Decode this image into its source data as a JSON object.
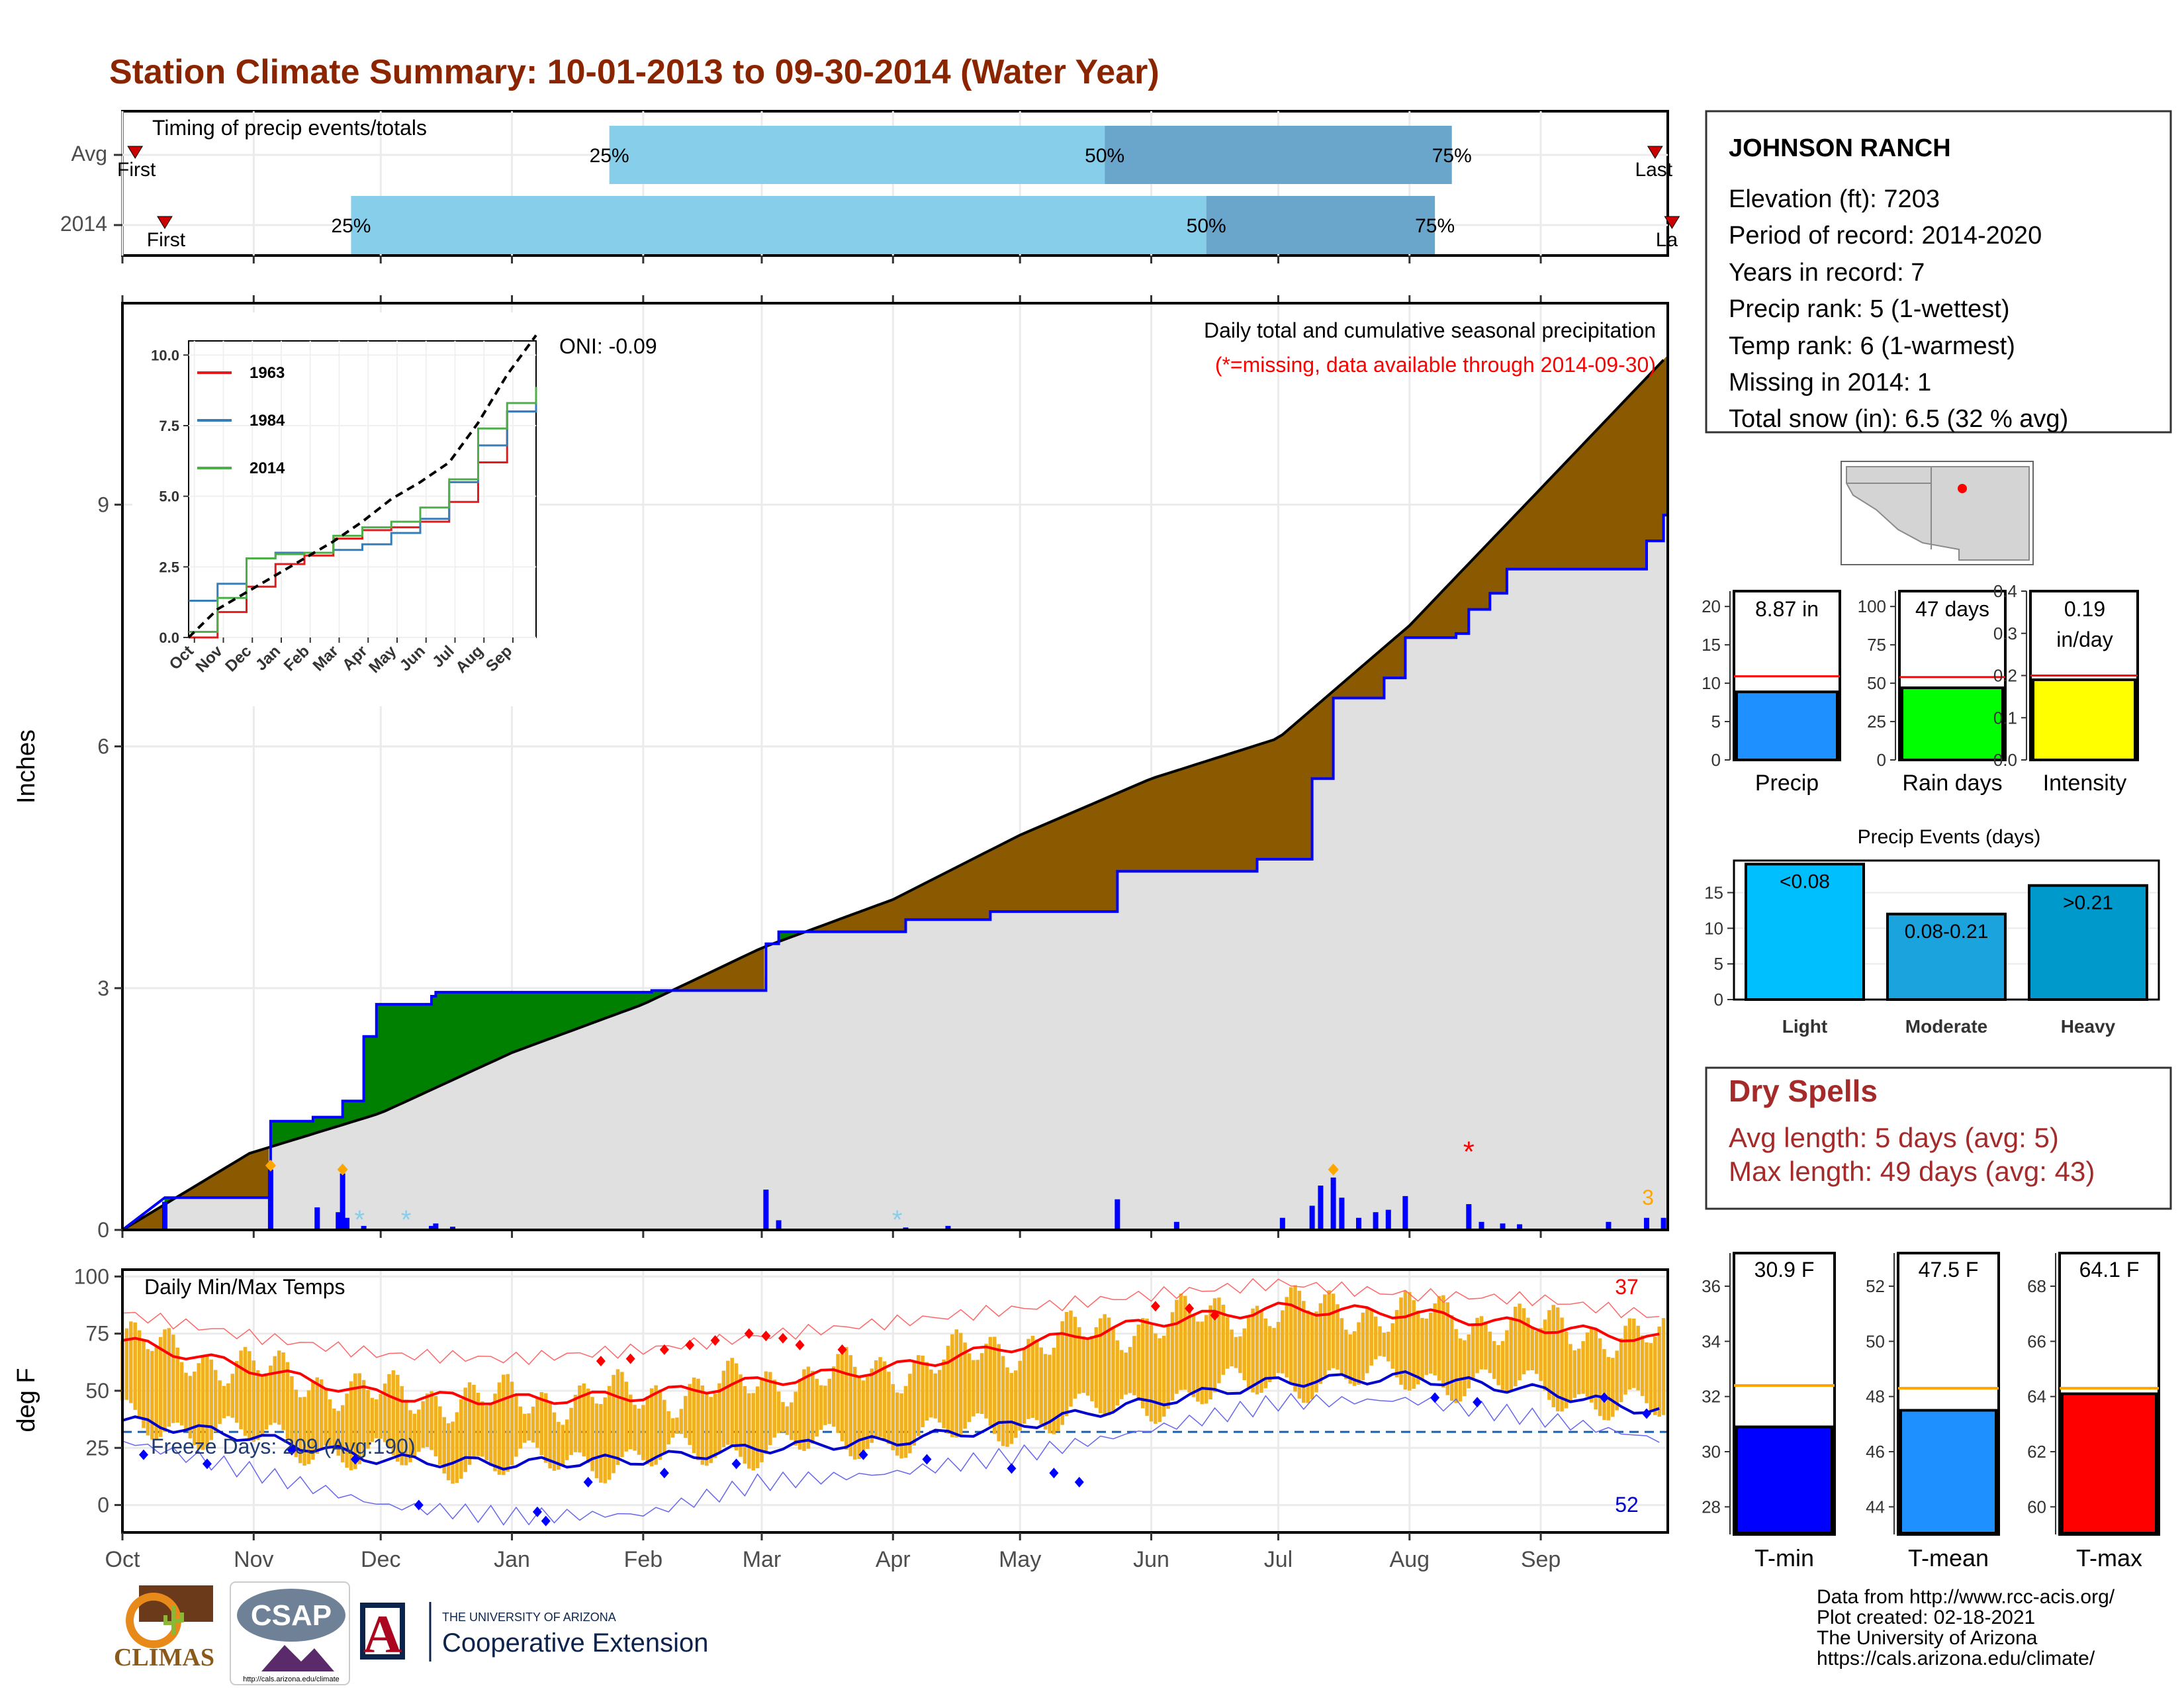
{
  "title": "Station Climate Summary: 10-01-2013 to 09-30-2014 (Water Year)",
  "timing": {
    "panel_label": "Timing of precip events/totals",
    "rows": [
      {
        "label": "Avg",
        "first_label": "First",
        "last_label": "Last",
        "p25_label": "25%",
        "p50_label": "50%",
        "p75_label": "75%",
        "first_day": 3,
        "p25_day": 115,
        "p50_day": 232,
        "p75_day": 314,
        "last_day": 362
      },
      {
        "label": "2014",
        "first_label": "First",
        "last_label": "La",
        "p25_label": "25%",
        "p50_label": "50%",
        "p75_label": "75%",
        "first_day": 10,
        "p25_day": 54,
        "p50_day": 256,
        "p75_day": 310,
        "last_day": 366
      }
    ],
    "colors": {
      "light": "#87ceeb",
      "mid": "#6aa6cc",
      "marker": "#cc0000"
    }
  },
  "station": {
    "name": "JOHNSON RANCH",
    "lines": [
      "Elevation (ft): 7203",
      "Period of record: 2014-2020",
      "Years in record: 7",
      "Precip rank: 5 (1-wettest)",
      "Temp rank: 6 (1-warmest)",
      "Missing in 2014: 1",
      "Total snow (in): 6.5 (32 % avg)"
    ]
  },
  "chart_data": [
    {
      "id": "cumulative-precip",
      "type": "area",
      "title": "Daily total and cumulative seasonal precipitation",
      "subtitle": "(*=missing, data available through 2014-09-30)",
      "oni_label": "ONI: -0.09",
      "ylabel": "Inches",
      "ylim": [
        0,
        11.5
      ],
      "yticks": [
        0,
        3,
        6,
        9
      ],
      "xlim": [
        0,
        365
      ],
      "x_ticks": [
        {
          "label": "Oct",
          "day": 0
        },
        {
          "label": "Nov",
          "day": 31
        },
        {
          "label": "Dec",
          "day": 61
        },
        {
          "label": "Jan",
          "day": 92
        },
        {
          "label": "Feb",
          "day": 123
        },
        {
          "label": "Mar",
          "day": 151
        },
        {
          "label": "Apr",
          "day": 182
        },
        {
          "label": "May",
          "day": 212
        },
        {
          "label": "Jun",
          "day": 243
        },
        {
          "label": "Jul",
          "day": 273
        },
        {
          "label": "Aug",
          "day": 304
        },
        {
          "label": "Sep",
          "day": 335
        }
      ],
      "average_cumulative": [
        [
          0,
          0
        ],
        [
          30,
          0.95
        ],
        [
          61,
          1.45
        ],
        [
          92,
          2.2
        ],
        [
          123,
          2.8
        ],
        [
          151,
          3.5
        ],
        [
          182,
          4.1
        ],
        [
          212,
          4.9
        ],
        [
          243,
          5.6
        ],
        [
          273,
          6.1
        ],
        [
          304,
          7.5
        ],
        [
          335,
          9.2
        ],
        [
          365,
          10.85
        ]
      ],
      "observed_cumulative_steps": [
        [
          0,
          0
        ],
        [
          10,
          0.4
        ],
        [
          25,
          0.4
        ],
        [
          35,
          0.4
        ],
        [
          35,
          1.35
        ],
        [
          45,
          1.35
        ],
        [
          45,
          1.4
        ],
        [
          52,
          1.4
        ],
        [
          52,
          1.6
        ],
        [
          57,
          1.6
        ],
        [
          57,
          2.4
        ],
        [
          60,
          2.4
        ],
        [
          60,
          2.8
        ],
        [
          73,
          2.8
        ],
        [
          73,
          2.9
        ],
        [
          74,
          2.9
        ],
        [
          74,
          2.95
        ],
        [
          125,
          2.95
        ],
        [
          125,
          2.97
        ],
        [
          152,
          2.97
        ],
        [
          152,
          3.55
        ],
        [
          155,
          3.55
        ],
        [
          155,
          3.7
        ],
        [
          185,
          3.7
        ],
        [
          185,
          3.85
        ],
        [
          205,
          3.85
        ],
        [
          205,
          3.95
        ],
        [
          235,
          3.95
        ],
        [
          235,
          4.45
        ],
        [
          268,
          4.45
        ],
        [
          268,
          4.6
        ],
        [
          281,
          4.6
        ],
        [
          281,
          5.6
        ],
        [
          286,
          5.6
        ],
        [
          286,
          6.6
        ],
        [
          298,
          6.6
        ],
        [
          298,
          6.85
        ],
        [
          303,
          6.85
        ],
        [
          303,
          7.35
        ],
        [
          315,
          7.35
        ],
        [
          315,
          7.4
        ],
        [
          318,
          7.4
        ],
        [
          318,
          7.7
        ],
        [
          323,
          7.7
        ],
        [
          323,
          7.9
        ],
        [
          327,
          7.9
        ],
        [
          327,
          8.2
        ],
        [
          360,
          8.2
        ],
        [
          360,
          8.55
        ],
        [
          364,
          8.55
        ],
        [
          364,
          8.87
        ]
      ],
      "daily_precip": [
        [
          10,
          0.35
        ],
        [
          35,
          0.75
        ],
        [
          46,
          0.28
        ],
        [
          51,
          0.22
        ],
        [
          52,
          0.7
        ],
        [
          53,
          0.15
        ],
        [
          57,
          0.05
        ],
        [
          73,
          0.05
        ],
        [
          74,
          0.08
        ],
        [
          78,
          0.04
        ],
        [
          152,
          0.5
        ],
        [
          155,
          0.12
        ],
        [
          185,
          0.03
        ],
        [
          195,
          0.05
        ],
        [
          235,
          0.38
        ],
        [
          249,
          0.1
        ],
        [
          274,
          0.15
        ],
        [
          281,
          0.3
        ],
        [
          283,
          0.55
        ],
        [
          286,
          0.65
        ],
        [
          288,
          0.4
        ],
        [
          292,
          0.15
        ],
        [
          296,
          0.22
        ],
        [
          299,
          0.25
        ],
        [
          303,
          0.42
        ],
        [
          318,
          0.32
        ],
        [
          321,
          0.1
        ],
        [
          326,
          0.08
        ],
        [
          330,
          0.07
        ],
        [
          351,
          0.1
        ],
        [
          360,
          0.15
        ],
        [
          364,
          0.15
        ]
      ],
      "missing_markers": [
        {
          "day": 318,
          "value": 1.0,
          "label": "*"
        }
      ],
      "snow_markers": [
        56,
        67,
        183
      ],
      "orange_markers": [
        {
          "day": 35,
          "value": 0.75
        },
        {
          "day": 52,
          "value": 0.7
        },
        {
          "day": 286,
          "value": 0.7
        }
      ],
      "corner_count": "3",
      "colors": {
        "above": "#8b5a00",
        "below": "#008000",
        "fill": "#e0e0e0",
        "observed": "#0000ff",
        "avg": "#000000"
      }
    },
    {
      "id": "historic-inset",
      "type": "line",
      "ylim": [
        0,
        10.5
      ],
      "yticks": [
        "0.0",
        "2.5",
        "5.0",
        "7.5",
        "10.0"
      ],
      "x_ticks": [
        "Oct",
        "Nov",
        "Dec",
        "Jan",
        "Feb",
        "Mar",
        "Apr",
        "May",
        "Jun",
        "Jul",
        "Aug",
        "Sep"
      ],
      "series": [
        {
          "name": "1963",
          "color": "#e41a1c",
          "values": [
            [
              0,
              0
            ],
            [
              1,
              0.9
            ],
            [
              2,
              1.8
            ],
            [
              3,
              2.6
            ],
            [
              4,
              2.9
            ],
            [
              5,
              3.5
            ],
            [
              6,
              3.8
            ],
            [
              7,
              3.9
            ],
            [
              8,
              4.1
            ],
            [
              9,
              4.8
            ],
            [
              10,
              6.2
            ],
            [
              11,
              8.0
            ],
            [
              12,
              8.5
            ]
          ]
        },
        {
          "name": "1984",
          "color": "#377eb8",
          "values": [
            [
              0,
              1.3
            ],
            [
              0.5,
              1.3
            ],
            [
              1,
              1.9
            ],
            [
              2,
              2.8
            ],
            [
              3,
              3.0
            ],
            [
              4,
              3.0
            ],
            [
              5,
              3.1
            ],
            [
              6,
              3.3
            ],
            [
              7,
              3.7
            ],
            [
              8,
              4.2
            ],
            [
              9,
              5.5
            ],
            [
              10,
              6.8
            ],
            [
              11,
              8.0
            ],
            [
              12,
              8.6
            ]
          ]
        },
        {
          "name": "2014",
          "color": "#4daf4a",
          "values": [
            [
              0,
              0.2
            ],
            [
              1,
              1.4
            ],
            [
              2,
              2.8
            ],
            [
              3,
              2.95
            ],
            [
              4,
              3.0
            ],
            [
              5,
              3.6
            ],
            [
              6,
              3.9
            ],
            [
              7,
              4.1
            ],
            [
              8,
              4.6
            ],
            [
              9,
              5.6
            ],
            [
              10,
              7.4
            ],
            [
              11,
              8.3
            ],
            [
              12,
              8.87
            ]
          ]
        }
      ],
      "avg_series": [
        [
          0,
          0
        ],
        [
          1,
          1.0
        ],
        [
          2,
          1.6
        ],
        [
          3,
          2.2
        ],
        [
          4,
          2.8
        ],
        [
          5,
          3.4
        ],
        [
          6,
          4.1
        ],
        [
          7,
          4.9
        ],
        [
          8,
          5.5
        ],
        [
          9,
          6.2
        ],
        [
          10,
          7.6
        ],
        [
          11,
          9.3
        ],
        [
          12,
          10.7
        ]
      ]
    },
    {
      "id": "precip-total",
      "type": "bar",
      "categories": [
        "Precip"
      ],
      "values": [
        8.87
      ],
      "value_label": "8.87 in",
      "avg": 10.9,
      "ylim": [
        0,
        22
      ],
      "yticks": [
        0,
        5,
        10,
        15,
        20
      ],
      "color": "#1e90ff"
    },
    {
      "id": "rain-days",
      "type": "bar",
      "categories": [
        "Rain days"
      ],
      "values": [
        47
      ],
      "value_label": "47 days",
      "avg": 54,
      "ylim": [
        0,
        110
      ],
      "yticks": [
        0,
        25,
        50,
        75,
        100
      ],
      "color": "#00ff00"
    },
    {
      "id": "intensity",
      "type": "bar",
      "categories": [
        "Intensity"
      ],
      "values": [
        0.19
      ],
      "value_label": "0.19",
      "value_label2": "in/day",
      "avg": 0.2,
      "ylim": [
        0,
        0.4
      ],
      "yticks": [
        "0.0",
        "0.1",
        "0.2",
        "0.3",
        "0.4"
      ],
      "color": "#ffff00"
    },
    {
      "id": "precip-events",
      "type": "bar",
      "title": "Precip Events (days)",
      "categories": [
        "Light",
        "Moderate",
        "Heavy"
      ],
      "values": [
        19,
        12,
        16
      ],
      "bar_labels": [
        "<0.08",
        "0.08-0.21",
        ">0.21"
      ],
      "ylim": [
        0,
        19.5
      ],
      "yticks": [
        0,
        5,
        10,
        15
      ],
      "colors": [
        "#00bfff",
        "#1aa3dc",
        "#0099cc"
      ]
    },
    {
      "id": "daily-temps",
      "type": "bar",
      "title": "Daily Min/Max Temps",
      "ylabel": "deg F",
      "ylim": [
        -12,
        103
      ],
      "yticks": [
        0,
        25,
        50,
        75,
        100
      ],
      "freeze_label": "Freeze Days: 209 (Avg:190)",
      "freeze_line": 32,
      "hot_count": "37",
      "cold_count": "52",
      "x_ticks": [
        "Oct",
        "Nov",
        "Dec",
        "Jan",
        "Feb",
        "Mar",
        "Apr",
        "May",
        "Jun",
        "Jul",
        "Aug",
        "Sep"
      ],
      "avg_max_curve": [
        [
          0,
          72
        ],
        [
          30,
          60
        ],
        [
          61,
          48
        ],
        [
          92,
          46
        ],
        [
          123,
          48
        ],
        [
          151,
          54
        ],
        [
          182,
          60
        ],
        [
          212,
          70
        ],
        [
          243,
          80
        ],
        [
          273,
          86
        ],
        [
          304,
          84
        ],
        [
          335,
          78
        ],
        [
          365,
          72
        ]
      ],
      "avg_min_curve": [
        [
          0,
          37
        ],
        [
          30,
          30
        ],
        [
          61,
          20
        ],
        [
          92,
          18
        ],
        [
          123,
          20
        ],
        [
          151,
          25
        ],
        [
          182,
          28
        ],
        [
          212,
          35
        ],
        [
          243,
          45
        ],
        [
          273,
          54
        ],
        [
          304,
          56
        ],
        [
          335,
          50
        ],
        [
          365,
          40
        ]
      ],
      "record_max_curve": [
        [
          0,
          84
        ],
        [
          30,
          74
        ],
        [
          61,
          66
        ],
        [
          92,
          64
        ],
        [
          123,
          68
        ],
        [
          151,
          74
        ],
        [
          182,
          80
        ],
        [
          212,
          86
        ],
        [
          243,
          92
        ],
        [
          273,
          97
        ],
        [
          304,
          92
        ],
        [
          335,
          90
        ],
        [
          365,
          82
        ]
      ],
      "record_min_curve": [
        [
          0,
          28
        ],
        [
          30,
          15
        ],
        [
          61,
          0
        ],
        [
          92,
          -5
        ],
        [
          123,
          -4
        ],
        [
          151,
          10
        ],
        [
          182,
          14
        ],
        [
          212,
          22
        ],
        [
          243,
          33
        ],
        [
          273,
          45
        ],
        [
          304,
          46
        ],
        [
          335,
          38
        ],
        [
          365,
          28
        ]
      ],
      "colors": {
        "bar": "#f0b020",
        "max": "#ff0000",
        "min": "#0000cc",
        "freeze": "#1f5fa8"
      }
    },
    {
      "id": "t-min",
      "type": "bar",
      "categories": [
        "T-min"
      ],
      "values": [
        30.9
      ],
      "value_label": "30.9 F",
      "avg": 32.4,
      "ylim": [
        27,
        37.2
      ],
      "yticks": [
        28,
        30,
        32,
        34,
        36
      ],
      "color": "#0000ff"
    },
    {
      "id": "t-mean",
      "type": "bar",
      "categories": [
        "T-mean"
      ],
      "values": [
        47.5
      ],
      "value_label": "47.5 F",
      "avg": 48.3,
      "ylim": [
        43,
        53.2
      ],
      "yticks": [
        44,
        46,
        48,
        50,
        52
      ],
      "color": "#1e90ff"
    },
    {
      "id": "t-max",
      "type": "bar",
      "categories": [
        "T-max"
      ],
      "values": [
        64.1
      ],
      "value_label": "64.1 F",
      "avg": 64.3,
      "ylim": [
        59,
        69.2
      ],
      "yticks": [
        60,
        62,
        64,
        66,
        68
      ],
      "color": "#ff0000"
    }
  ],
  "dry_spells": {
    "title": "Dry Spells",
    "avg_line": "Avg length: 5 days (avg: 5)",
    "max_line": "Max length: 49 days (avg: 43)",
    "color": "#a52a2a"
  },
  "credits": {
    "lines": [
      "Data from http://www.rcc-acis.org/",
      "Plot created: 02-18-2021",
      "The University of Arizona",
      "https://cals.arizona.edu/climate/"
    ]
  },
  "logos": {
    "climas": "CLIMAS",
    "csap": "CSAP",
    "csap_url": "http://cals.arizona.edu/climate",
    "ua_small": "THE UNIVERSITY OF ARIZONA",
    "ua_big": "Cooperative Extension",
    "ua_letter": "A"
  }
}
